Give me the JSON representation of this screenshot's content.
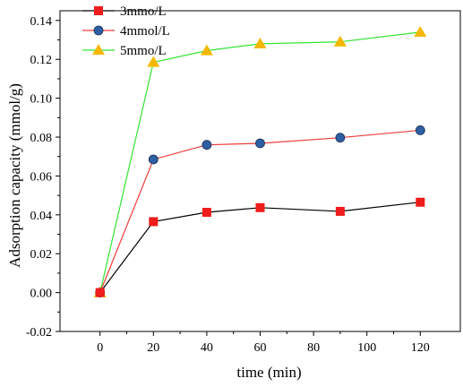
{
  "chart_data": {
    "type": "line",
    "title": "",
    "xlabel": "time (min)",
    "ylabel": "Adsorption capacity (mmol/g)",
    "xlim": [
      -15,
      135
    ],
    "ylim": [
      -0.02,
      0.145
    ],
    "xticks": [
      0,
      20,
      40,
      60,
      80,
      100,
      120
    ],
    "xtick_labels": [
      "0",
      "20",
      "40",
      "60",
      "80",
      "100",
      "120"
    ],
    "yticks": [
      -0.02,
      0.0,
      0.02,
      0.04,
      0.06,
      0.08,
      0.1,
      0.12,
      0.14
    ],
    "ytick_labels": [
      "-0.02",
      "0.00",
      "0.02",
      "0.04",
      "0.06",
      "0.08",
      "0.10",
      "0.12",
      "0.14"
    ],
    "grid": false,
    "legend_position": "top-left",
    "series": [
      {
        "name": "3mmo/L",
        "marker": "square",
        "marker_color": "#ee1c1c",
        "line_color": "#000000",
        "x": [
          0,
          20,
          40,
          60,
          90,
          120
        ],
        "y": [
          0.0,
          0.0365,
          0.0413,
          0.0437,
          0.0418,
          0.0465
        ]
      },
      {
        "name": "4mmol/L",
        "marker": "circle",
        "marker_color": "#2e5fa3",
        "line_color": "#f03c3c",
        "x": [
          0,
          20,
          40,
          60,
          90,
          120
        ],
        "y": [
          0.0,
          0.0685,
          0.076,
          0.0768,
          0.0797,
          0.0835
        ]
      },
      {
        "name": "5mmo/L",
        "marker": "triangle",
        "marker_color": "#f5b800",
        "line_color": "#33e633",
        "x": [
          0,
          20,
          40,
          60,
          90,
          120
        ],
        "y": [
          0.0,
          0.1185,
          0.1245,
          0.128,
          0.129,
          0.134
        ]
      }
    ]
  }
}
